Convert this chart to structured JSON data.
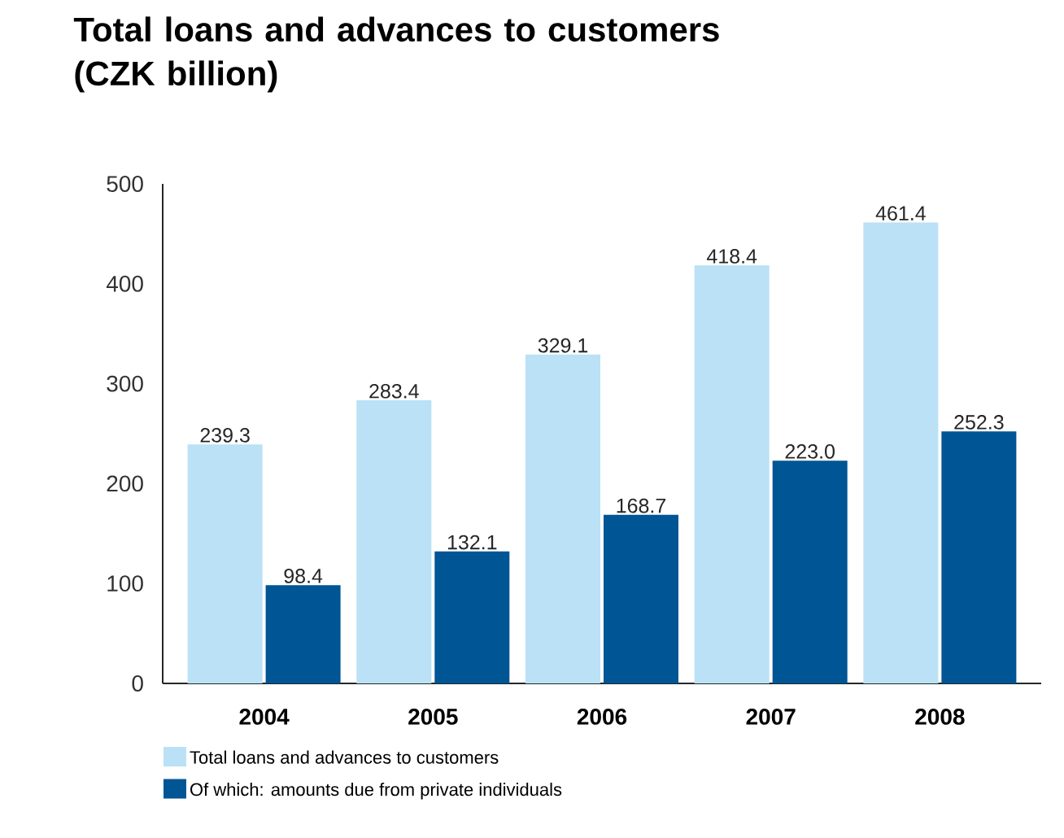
{
  "chart_data": {
    "type": "bar",
    "title": "Total loans and advances to customers (CZK billion)",
    "categories": [
      "2004",
      "2005",
      "2006",
      "2007",
      "2008"
    ],
    "series": [
      {
        "name": "Total loans and advances to customers",
        "color": "#bae1f6",
        "values": [
          239.3,
          283.4,
          329.1,
          418.4,
          461.4
        ],
        "value_labels": [
          "239.3",
          "283.4",
          "329.1",
          "418.4",
          "461.4"
        ]
      },
      {
        "name": "Of which: amounts due from private individuals",
        "color": "#005595",
        "values": [
          98.4,
          132.1,
          168.7,
          223.0,
          252.3
        ],
        "value_labels": [
          "98.4",
          "132.1",
          "168.7",
          "223.0",
          "252.3"
        ]
      }
    ],
    "ylim": [
      0,
      500
    ],
    "yticks": [
      0,
      100,
      200,
      300,
      400,
      500
    ],
    "legend": "bottom"
  }
}
